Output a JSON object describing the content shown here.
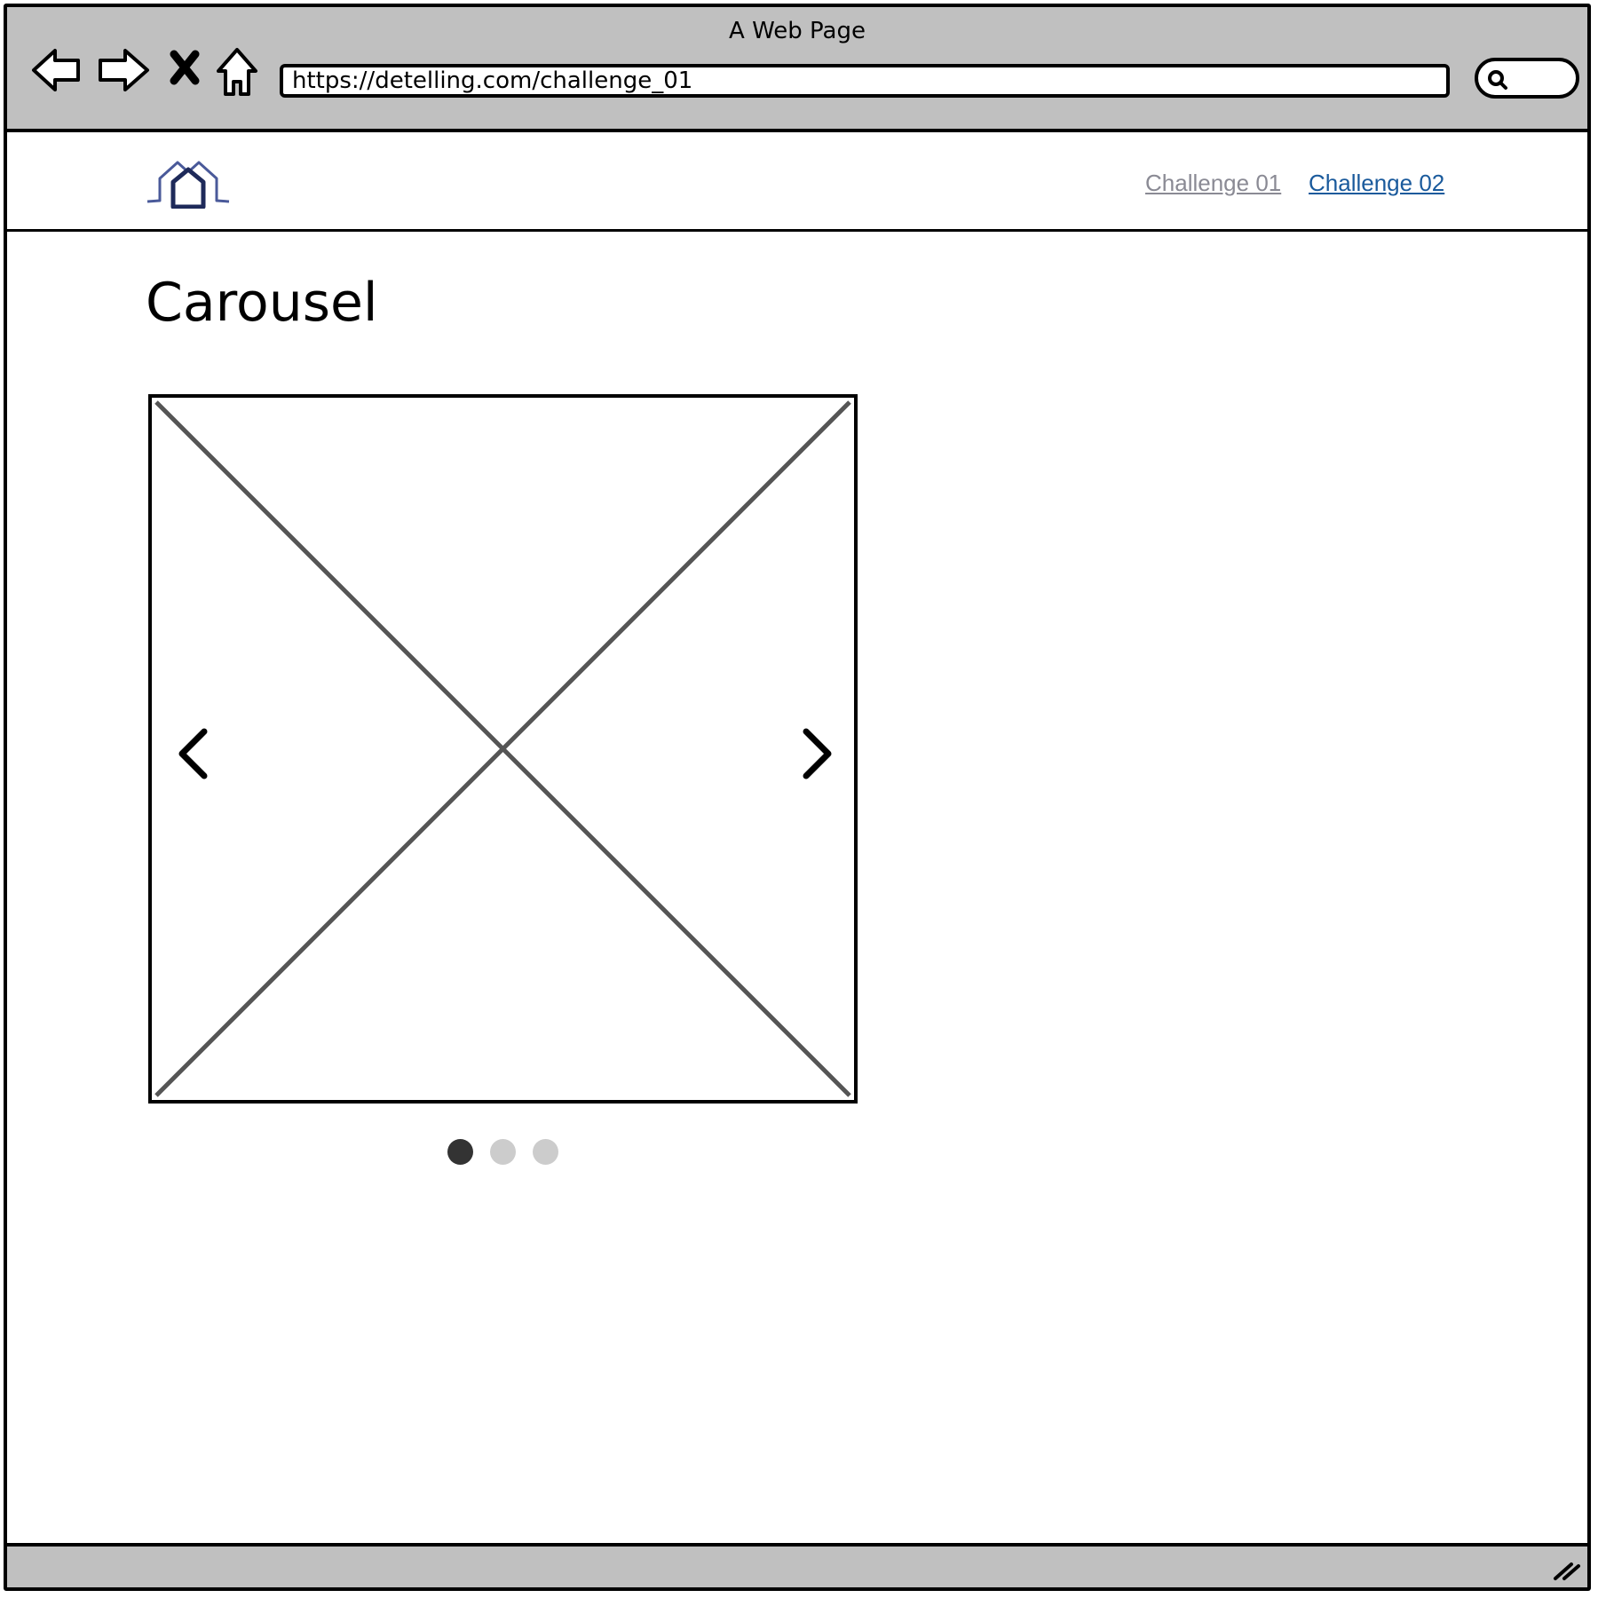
{
  "window": {
    "title": "A Web Page"
  },
  "toolbar": {
    "back_icon": "back-arrow-icon",
    "forward_icon": "forward-arrow-icon",
    "stop_icon": "stop-x-icon",
    "home_icon": "home-icon",
    "url": "https://detelling.com/challenge_01",
    "search_icon": "magnifier-icon"
  },
  "header": {
    "logo_icon": "house-logo-icon",
    "nav": [
      {
        "label": "Challenge 01",
        "color": "#8a8a94",
        "state": "visited"
      },
      {
        "label": "Challenge 02",
        "color": "#1a5a9c",
        "state": "link"
      }
    ]
  },
  "main": {
    "title": "Carousel"
  },
  "carousel": {
    "slide": "image-placeholder",
    "prev_icon": "chevron-left-icon",
    "next_icon": "chevron-right-icon",
    "active_index": 0,
    "dots": [
      {
        "active": true,
        "color": "#333333"
      },
      {
        "active": false,
        "color": "#cccccc"
      },
      {
        "active": false,
        "color": "#cccccc"
      }
    ]
  },
  "colors": {
    "chrome": "#c0c0c0",
    "border": "#000000",
    "placeholder_lines": "#555555"
  }
}
